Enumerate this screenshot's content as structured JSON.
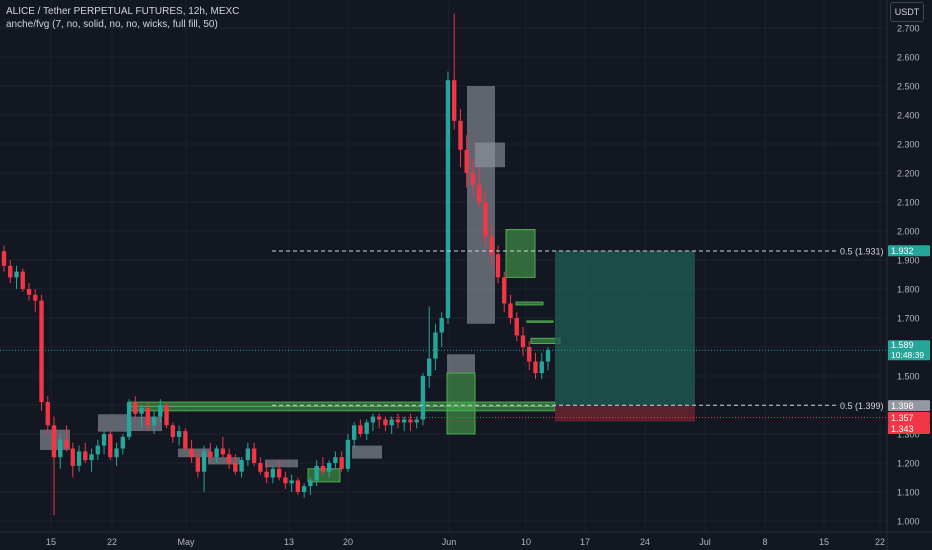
{
  "legend": {
    "title": "ALICE / Tether PERPETUAL FUTURES, 12h, MEXC",
    "indicator": "anche/fvg (7, no, solid, no, no, wicks, full fill, 50)"
  },
  "currency_button": "USDT",
  "colors": {
    "background": "#131722",
    "up": "#26a69a",
    "down": "#f23645",
    "grid": "#1e222d",
    "axis_text": "#b2b5be",
    "fvg_gray": "#9598a1",
    "fvg_green": "#4caf50",
    "target_zone": "#1f5f55",
    "stop_zone": "#6b2330"
  },
  "chart_data": {
    "type": "candlestick",
    "y_axis": {
      "ticks": [
        "2.700",
        "2.600",
        "2.500",
        "2.400",
        "2.300",
        "2.200",
        "2.100",
        "2.000",
        "1.900",
        "1.800",
        "1.700",
        "1.600",
        "1.500",
        "1.400",
        "1.300",
        "1.200",
        "1.100",
        "1.000"
      ],
      "ylim": [
        0.985,
        2.755
      ]
    },
    "x_axis": {
      "ticks": [
        "15",
        "22",
        "May",
        "13",
        "20",
        "Jun",
        "10",
        "17",
        "24",
        "Jul",
        "8",
        "15",
        "22"
      ]
    },
    "price_labels": [
      {
        "text": "1.932",
        "value": 1.932,
        "color": "#26a69a"
      },
      {
        "text": "1.589",
        "sub": "10:48:39",
        "value": 1.589,
        "color": "#26a69a"
      },
      {
        "text": "1.398",
        "value": 1.398,
        "color": "#9598a1"
      },
      {
        "text": "1.357",
        "value": 1.357,
        "color": "#f23645"
      },
      {
        "text": "1.343",
        "value": 1.343,
        "color": "#f23645"
      }
    ],
    "levels": [
      {
        "label": "0.5 (1.931)",
        "value": 1.931
      },
      {
        "label": "0.5 (1.399)",
        "value": 1.399
      }
    ],
    "current_price": 1.589,
    "position": {
      "entry": 1.398,
      "target": 1.932,
      "stop": 1.343,
      "stop_line": 1.357
    },
    "fvg_boxes": [
      {
        "kind": "gray",
        "top": 1.315,
        "bottom": 1.245
      },
      {
        "kind": "gray",
        "top": 1.368,
        "bottom": 1.308
      },
      {
        "kind": "gray",
        "top": 1.36,
        "bottom": 1.31
      },
      {
        "kind": "gray",
        "top": 1.25,
        "bottom": 1.22
      },
      {
        "kind": "gray",
        "top": 1.22,
        "bottom": 1.195
      },
      {
        "kind": "gray",
        "top": 1.212,
        "bottom": 1.185
      },
      {
        "kind": "gray",
        "top": 1.26,
        "bottom": 1.215
      },
      {
        "kind": "gray",
        "top": 1.575,
        "bottom": 1.51
      },
      {
        "kind": "gray",
        "top": 2.5,
        "bottom": 1.68
      },
      {
        "kind": "gray",
        "top": 2.305,
        "bottom": 2.22
      },
      {
        "kind": "green",
        "top": 1.41,
        "bottom": 1.395
      },
      {
        "kind": "green",
        "top": 1.395,
        "bottom": 1.38
      },
      {
        "kind": "green",
        "top": 1.18,
        "bottom": 1.135
      },
      {
        "kind": "green",
        "top": 1.51,
        "bottom": 1.3
      },
      {
        "kind": "green",
        "top": 2.005,
        "bottom": 1.84
      },
      {
        "kind": "green",
        "top": 1.755,
        "bottom": 1.745
      },
      {
        "kind": "green",
        "top": 1.63,
        "bottom": 1.612
      },
      {
        "kind": "green",
        "top": 1.69,
        "bottom": 1.685
      }
    ],
    "candles": [
      [
        1.93,
        1.95,
        1.86,
        1.88
      ],
      [
        1.88,
        1.9,
        1.82,
        1.84
      ],
      [
        1.84,
        1.88,
        1.8,
        1.86
      ],
      [
        1.86,
        1.87,
        1.79,
        1.8
      ],
      [
        1.8,
        1.82,
        1.76,
        1.78
      ],
      [
        1.78,
        1.8,
        1.72,
        1.76
      ],
      [
        1.76,
        1.78,
        1.38,
        1.41
      ],
      [
        1.41,
        1.43,
        1.3,
        1.33
      ],
      [
        1.33,
        1.36,
        1.02,
        1.22
      ],
      [
        1.22,
        1.3,
        1.18,
        1.28
      ],
      [
        1.28,
        1.33,
        1.24,
        1.25
      ],
      [
        1.25,
        1.27,
        1.15,
        1.19
      ],
      [
        1.19,
        1.26,
        1.17,
        1.24
      ],
      [
        1.24,
        1.27,
        1.2,
        1.21
      ],
      [
        1.21,
        1.25,
        1.17,
        1.23
      ],
      [
        1.23,
        1.28,
        1.21,
        1.26
      ],
      [
        1.26,
        1.31,
        1.23,
        1.3
      ],
      [
        1.3,
        1.31,
        1.21,
        1.22
      ],
      [
        1.22,
        1.27,
        1.19,
        1.25
      ],
      [
        1.25,
        1.3,
        1.23,
        1.29
      ],
      [
        1.29,
        1.42,
        1.28,
        1.41
      ],
      [
        1.41,
        1.43,
        1.35,
        1.37
      ],
      [
        1.37,
        1.4,
        1.32,
        1.39
      ],
      [
        1.39,
        1.41,
        1.31,
        1.33
      ],
      [
        1.33,
        1.38,
        1.3,
        1.36
      ],
      [
        1.36,
        1.42,
        1.34,
        1.4
      ],
      [
        1.4,
        1.41,
        1.32,
        1.33
      ],
      [
        1.33,
        1.34,
        1.27,
        1.29
      ],
      [
        1.29,
        1.33,
        1.26,
        1.31
      ],
      [
        1.31,
        1.32,
        1.24,
        1.25
      ],
      [
        1.25,
        1.28,
        1.2,
        1.22
      ],
      [
        1.22,
        1.24,
        1.15,
        1.17
      ],
      [
        1.17,
        1.26,
        1.1,
        1.24
      ],
      [
        1.24,
        1.27,
        1.21,
        1.22
      ],
      [
        1.22,
        1.26,
        1.2,
        1.25
      ],
      [
        1.25,
        1.29,
        1.22,
        1.23
      ],
      [
        1.23,
        1.25,
        1.18,
        1.2
      ],
      [
        1.2,
        1.23,
        1.16,
        1.17
      ],
      [
        1.17,
        1.22,
        1.15,
        1.21
      ],
      [
        1.21,
        1.27,
        1.19,
        1.25
      ],
      [
        1.25,
        1.27,
        1.19,
        1.2
      ],
      [
        1.2,
        1.22,
        1.16,
        1.17
      ],
      [
        1.17,
        1.2,
        1.13,
        1.15
      ],
      [
        1.15,
        1.19,
        1.13,
        1.18
      ],
      [
        1.18,
        1.21,
        1.14,
        1.15
      ],
      [
        1.15,
        1.17,
        1.11,
        1.13
      ],
      [
        1.13,
        1.16,
        1.1,
        1.14
      ],
      [
        1.14,
        1.15,
        1.09,
        1.1
      ],
      [
        1.1,
        1.13,
        1.08,
        1.12
      ],
      [
        1.12,
        1.15,
        1.09,
        1.14
      ],
      [
        1.14,
        1.21,
        1.12,
        1.19
      ],
      [
        1.19,
        1.22,
        1.16,
        1.17
      ],
      [
        1.17,
        1.21,
        1.15,
        1.2
      ],
      [
        1.2,
        1.24,
        1.18,
        1.22
      ],
      [
        1.22,
        1.24,
        1.17,
        1.18
      ],
      [
        1.18,
        1.3,
        1.17,
        1.28
      ],
      [
        1.28,
        1.34,
        1.25,
        1.33
      ],
      [
        1.33,
        1.35,
        1.29,
        1.3
      ],
      [
        1.3,
        1.35,
        1.28,
        1.34
      ],
      [
        1.34,
        1.37,
        1.31,
        1.36
      ],
      [
        1.36,
        1.37,
        1.32,
        1.35
      ],
      [
        1.35,
        1.36,
        1.31,
        1.33
      ],
      [
        1.33,
        1.36,
        1.3,
        1.35
      ],
      [
        1.35,
        1.37,
        1.32,
        1.34
      ],
      [
        1.34,
        1.36,
        1.31,
        1.35
      ],
      [
        1.35,
        1.37,
        1.31,
        1.34
      ],
      [
        1.34,
        1.36,
        1.32,
        1.35
      ],
      [
        1.35,
        1.51,
        1.33,
        1.5
      ],
      [
        1.5,
        1.74,
        1.46,
        1.56
      ],
      [
        1.56,
        1.68,
        1.52,
        1.65
      ],
      [
        1.65,
        1.72,
        1.6,
        1.7
      ],
      [
        1.7,
        2.55,
        1.68,
        2.52
      ],
      [
        2.52,
        2.75,
        2.35,
        2.38
      ],
      [
        2.38,
        2.42,
        2.22,
        2.28
      ],
      [
        2.28,
        2.33,
        2.15,
        2.2
      ],
      [
        2.2,
        2.25,
        2.12,
        2.16
      ],
      [
        2.16,
        2.22,
        2.08,
        2.1
      ],
      [
        2.1,
        2.14,
        1.95,
        1.98
      ],
      [
        1.98,
        2.02,
        1.88,
        1.92
      ],
      [
        1.92,
        1.95,
        1.82,
        1.84
      ],
      [
        1.84,
        1.86,
        1.72,
        1.75
      ],
      [
        1.75,
        1.78,
        1.68,
        1.7
      ],
      [
        1.7,
        1.72,
        1.62,
        1.64
      ],
      [
        1.64,
        1.67,
        1.57,
        1.6
      ],
      [
        1.6,
        1.62,
        1.52,
        1.55
      ],
      [
        1.55,
        1.58,
        1.49,
        1.51
      ],
      [
        1.51,
        1.58,
        1.49,
        1.55
      ],
      [
        1.55,
        1.6,
        1.52,
        1.59
      ]
    ]
  }
}
